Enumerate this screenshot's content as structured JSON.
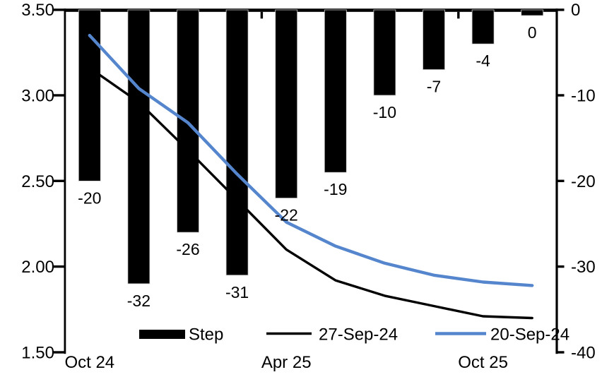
{
  "chart_data": {
    "type": "combo",
    "title": "",
    "categories_count": 10,
    "x_axis": {
      "labels": [
        {
          "index": 0,
          "text": "Oct 24"
        },
        {
          "index": 4,
          "text": "Apr 25"
        },
        {
          "index": 8,
          "text": "Oct 25"
        }
      ]
    },
    "left_axis": {
      "min": 1.5,
      "max": 3.5,
      "ticks": [
        "3.50",
        "3.00",
        "2.50",
        "2.00",
        "1.50"
      ]
    },
    "right_axis": {
      "min": -40,
      "max": 0,
      "ticks": [
        "0",
        "-10",
        "-20",
        "-30",
        "-40"
      ]
    },
    "grid": "off",
    "colors": {
      "bar": "#000000",
      "line_27sep": "#000000",
      "line_20sep": "#5586CD"
    },
    "series": [
      {
        "name": "Step",
        "type": "bar",
        "axis": "right",
        "color": "#000000",
        "values": [
          -20,
          -32,
          -26,
          -31,
          -22,
          -19,
          -10,
          -7,
          -4,
          0
        ],
        "labels": [
          "-20",
          "-32",
          "-26",
          "-31",
          "-22",
          "-19",
          "-10",
          "-7",
          "-4",
          "0"
        ]
      },
      {
        "name": "27-Sep-24",
        "type": "line",
        "axis": "left",
        "color": "#000000",
        "values": [
          3.16,
          2.96,
          2.68,
          2.39,
          2.1,
          1.92,
          1.83,
          1.77,
          1.71,
          1.7
        ]
      },
      {
        "name": "20-Sep-24",
        "type": "line",
        "axis": "left",
        "color": "#5586CD",
        "values": [
          3.35,
          3.04,
          2.84,
          2.54,
          2.26,
          2.12,
          2.02,
          1.95,
          1.91,
          1.89
        ]
      }
    ],
    "legend": {
      "position": "bottom",
      "entries": [
        {
          "label": "Step",
          "swatch": "bar",
          "color": "#000000"
        },
        {
          "label": "27-Sep-24",
          "swatch": "line",
          "color": "#000000"
        },
        {
          "label": "20-Sep-24",
          "swatch": "line",
          "color": "#5586CD"
        }
      ]
    }
  }
}
